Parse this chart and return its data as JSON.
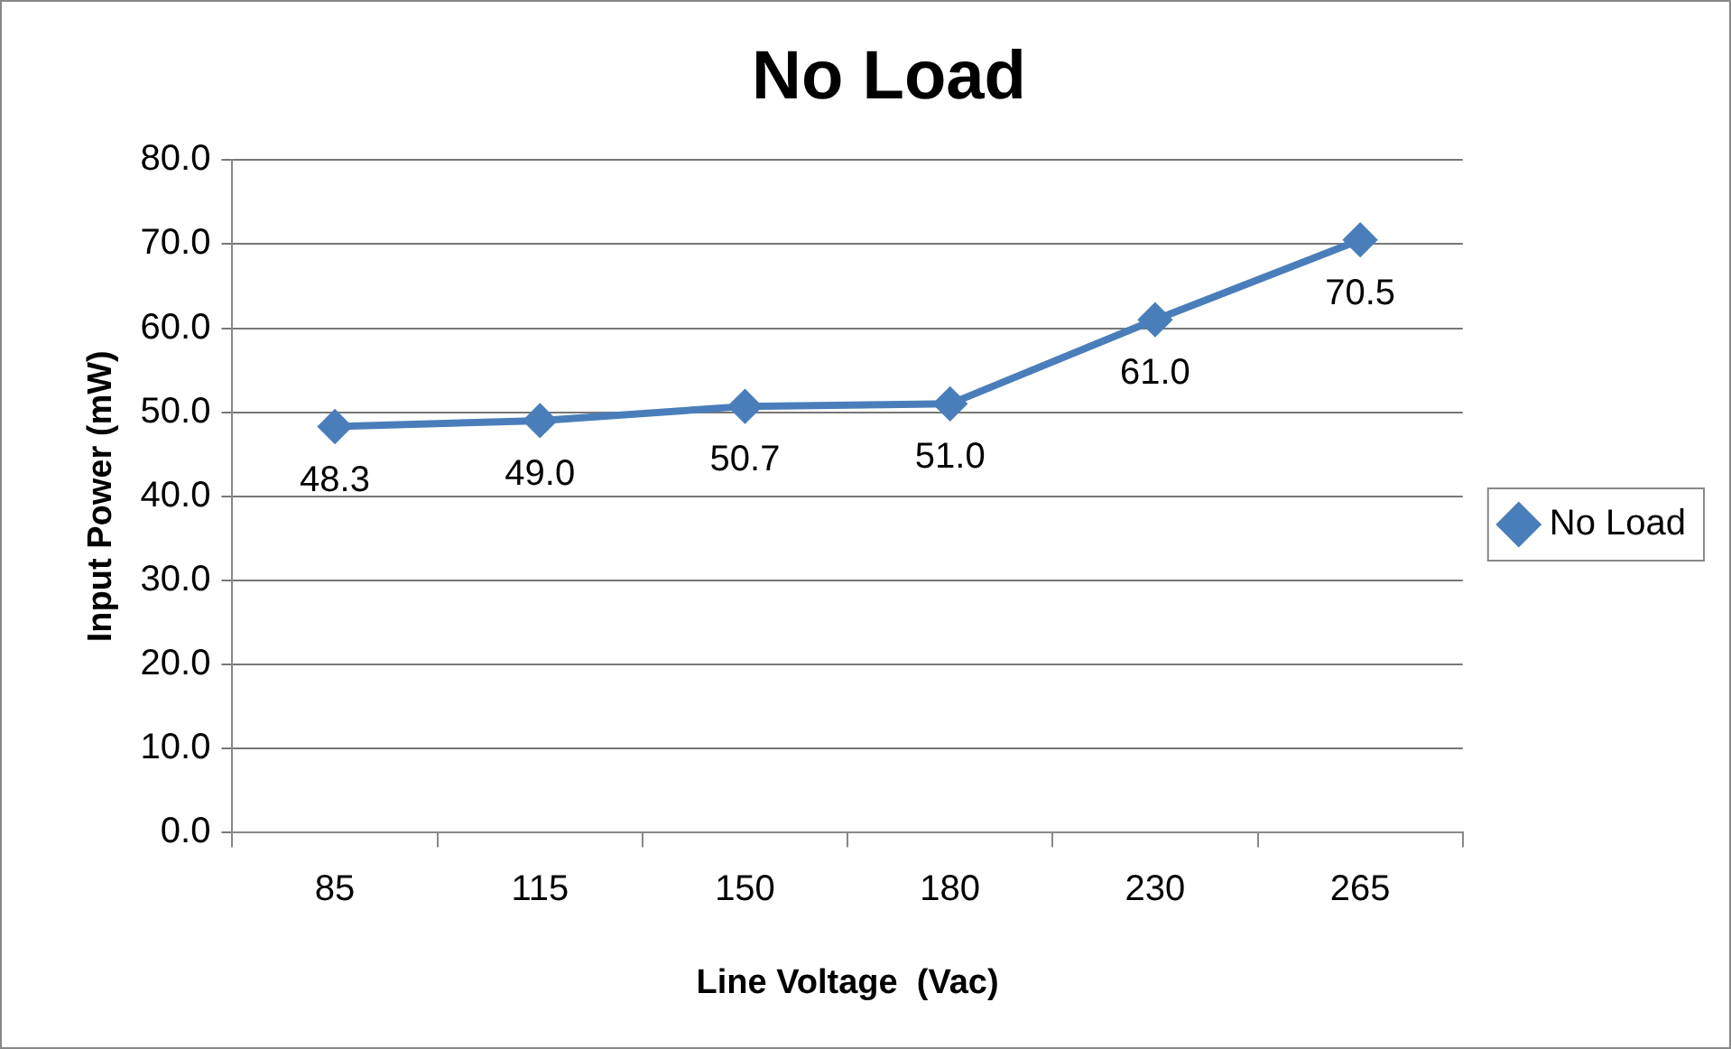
{
  "chart_data": {
    "type": "line",
    "title": "No Load",
    "xlabel": "Line Voltage  (Vac)",
    "ylabel": "Input Power (mW)",
    "categories": [
      "85",
      "115",
      "150",
      "180",
      "230",
      "265"
    ],
    "series": [
      {
        "name": "No Load",
        "color": "#4a7ebb",
        "values": [
          48.3,
          49.0,
          50.7,
          51.0,
          61.0,
          70.5
        ],
        "value_labels": [
          "48.3",
          "49.0",
          "50.7",
          "51.0",
          "61.0",
          "70.5"
        ]
      }
    ],
    "ylim": [
      0,
      80
    ],
    "yticks": [
      {
        "value": 0,
        "label": "0.0"
      },
      {
        "value": 10,
        "label": "10.0"
      },
      {
        "value": 20,
        "label": "20.0"
      },
      {
        "value": 30,
        "label": "30.0"
      },
      {
        "value": 40,
        "label": "40.0"
      },
      {
        "value": 50,
        "label": "50.0"
      },
      {
        "value": 60,
        "label": "60.0"
      },
      {
        "value": 70,
        "label": "70.0"
      },
      {
        "value": 80,
        "label": "80.0"
      }
    ],
    "grid": "y",
    "legend": "right",
    "marker": "diamond",
    "line_style": "solid"
  }
}
